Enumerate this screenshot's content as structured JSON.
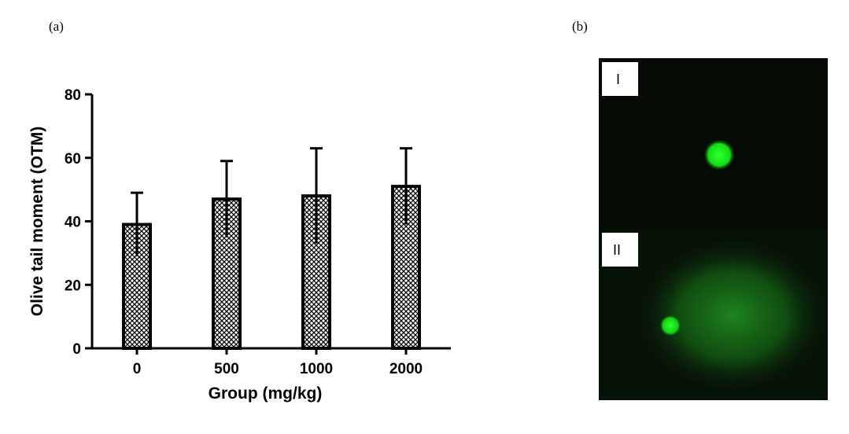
{
  "panels": {
    "a_label": "(a)",
    "b_label": "(b)"
  },
  "chart_data": {
    "type": "bar",
    "xlabel": "Group (mg/kg)",
    "ylabel": "Olive tail moment (OTM)",
    "categories": [
      "0",
      "500",
      "1000",
      "2000"
    ],
    "values": [
      39,
      47,
      48,
      51
    ],
    "error_upper": [
      10,
      12,
      15,
      12
    ],
    "error_lower": [
      10,
      12,
      15,
      12
    ],
    "ylim": [
      0,
      80
    ],
    "yticks": [
      0,
      20,
      40,
      60,
      80
    ],
    "ytick_labels": [
      "0",
      "20",
      "40",
      "60",
      "80"
    ],
    "bar_pattern": "crosshatch",
    "grid": false
  },
  "micrographs": [
    {
      "label": "I",
      "description_color": "#00ff00"
    },
    {
      "label": "II",
      "description_color": "#00ff00"
    }
  ]
}
